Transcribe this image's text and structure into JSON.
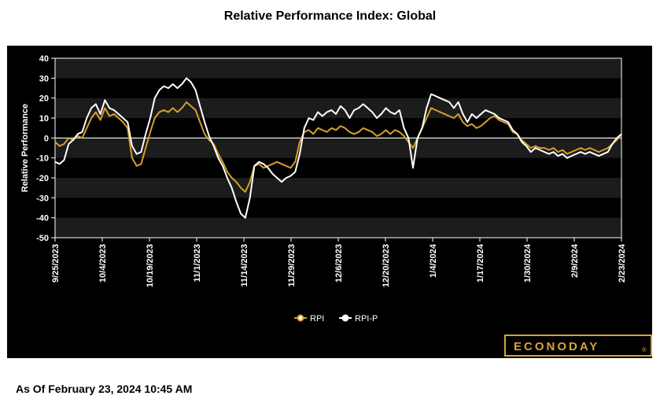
{
  "title": "Relative Performance Index: Global",
  "footer": {
    "timestamp": "As Of February 23, 2024 10:45 AM"
  },
  "brand": {
    "logo": "ECONODAY",
    "registered": "®",
    "logo_color": "#d8a23c"
  },
  "colors": {
    "rpi": "#d4a028",
    "rpi_p": "#ffffff",
    "background": "#000000",
    "band": "#1c1c1c"
  },
  "chart_data": {
    "type": "line",
    "title": "Relative Performance Index: Global",
    "xlabel": "",
    "ylabel": "Relative Performance",
    "ylim": [
      -50,
      40
    ],
    "yticks": [
      40,
      30,
      20,
      10,
      0,
      -10,
      -20,
      -30,
      -40,
      -50
    ],
    "x_ticks": [
      "9/25/2023",
      "10/4/2023",
      "10/19/2023",
      "11/1/2023",
      "11/14/2023",
      "11/29/2023",
      "12/6/2023",
      "12/20/2023",
      "1/4/2024",
      "1/17/2024",
      "1/30/2024",
      "2/9/2024",
      "2/23/2024"
    ],
    "legend_position": "bottom-center",
    "series": [
      {
        "name": "RPI",
        "values": [
          -2,
          -4,
          -3,
          0,
          -1,
          1,
          0,
          5,
          10,
          13,
          9,
          15,
          11,
          12,
          10,
          8,
          5,
          -10,
          -14,
          -13,
          -5,
          3,
          10,
          13,
          14,
          13,
          15,
          13,
          15,
          18,
          16,
          14,
          8,
          2,
          -1,
          -3,
          -8,
          -12,
          -17,
          -20,
          -22,
          -25,
          -27,
          -22,
          -14,
          -13,
          -15,
          -14,
          -13,
          -12,
          -13,
          -14,
          -15,
          -12,
          -2,
          3,
          4,
          2,
          5,
          4,
          3,
          5,
          4,
          6,
          5,
          3,
          2,
          3,
          5,
          4,
          3,
          1,
          2,
          4,
          2,
          4,
          3,
          1,
          -2,
          -5,
          0,
          5,
          10,
          15,
          14,
          13,
          12,
          11,
          10,
          12,
          8,
          6,
          7,
          5,
          6,
          8,
          10,
          11,
          9,
          8,
          7,
          3,
          2,
          -1,
          -3,
          -5,
          -4,
          -5,
          -5,
          -6,
          -5,
          -7,
          -6,
          -8,
          -7,
          -6,
          -5,
          -6,
          -5,
          -6,
          -7,
          -6,
          -5,
          -3,
          -1,
          2
        ]
      },
      {
        "name": "RPI-P",
        "values": [
          -12,
          -13,
          -11,
          -3,
          -1,
          2,
          3,
          10,
          15,
          17,
          12,
          19,
          15,
          14,
          12,
          10,
          8,
          -4,
          -8,
          -7,
          2,
          10,
          20,
          24,
          26,
          25,
          27,
          25,
          27,
          30,
          28,
          24,
          16,
          8,
          1,
          -4,
          -10,
          -14,
          -20,
          -25,
          -32,
          -38,
          -40,
          -30,
          -14,
          -12,
          -13,
          -15,
          -18,
          -20,
          -22,
          -20,
          -19,
          -17,
          -8,
          5,
          10,
          9,
          13,
          11,
          13,
          14,
          12,
          16,
          14,
          10,
          14,
          15,
          17,
          15,
          13,
          10,
          12,
          15,
          13,
          12,
          14,
          5,
          0,
          -15,
          0,
          5,
          15,
          22,
          21,
          20,
          19,
          18,
          15,
          18,
          12,
          8,
          12,
          10,
          12,
          14,
          13,
          12,
          10,
          9,
          8,
          4,
          2,
          -2,
          -4,
          -7,
          -5,
          -6,
          -7,
          -8,
          -7,
          -9,
          -8,
          -10,
          -9,
          -8,
          -7,
          -8,
          -7,
          -8,
          -9,
          -8,
          -7,
          -3,
          0,
          2
        ]
      }
    ]
  }
}
